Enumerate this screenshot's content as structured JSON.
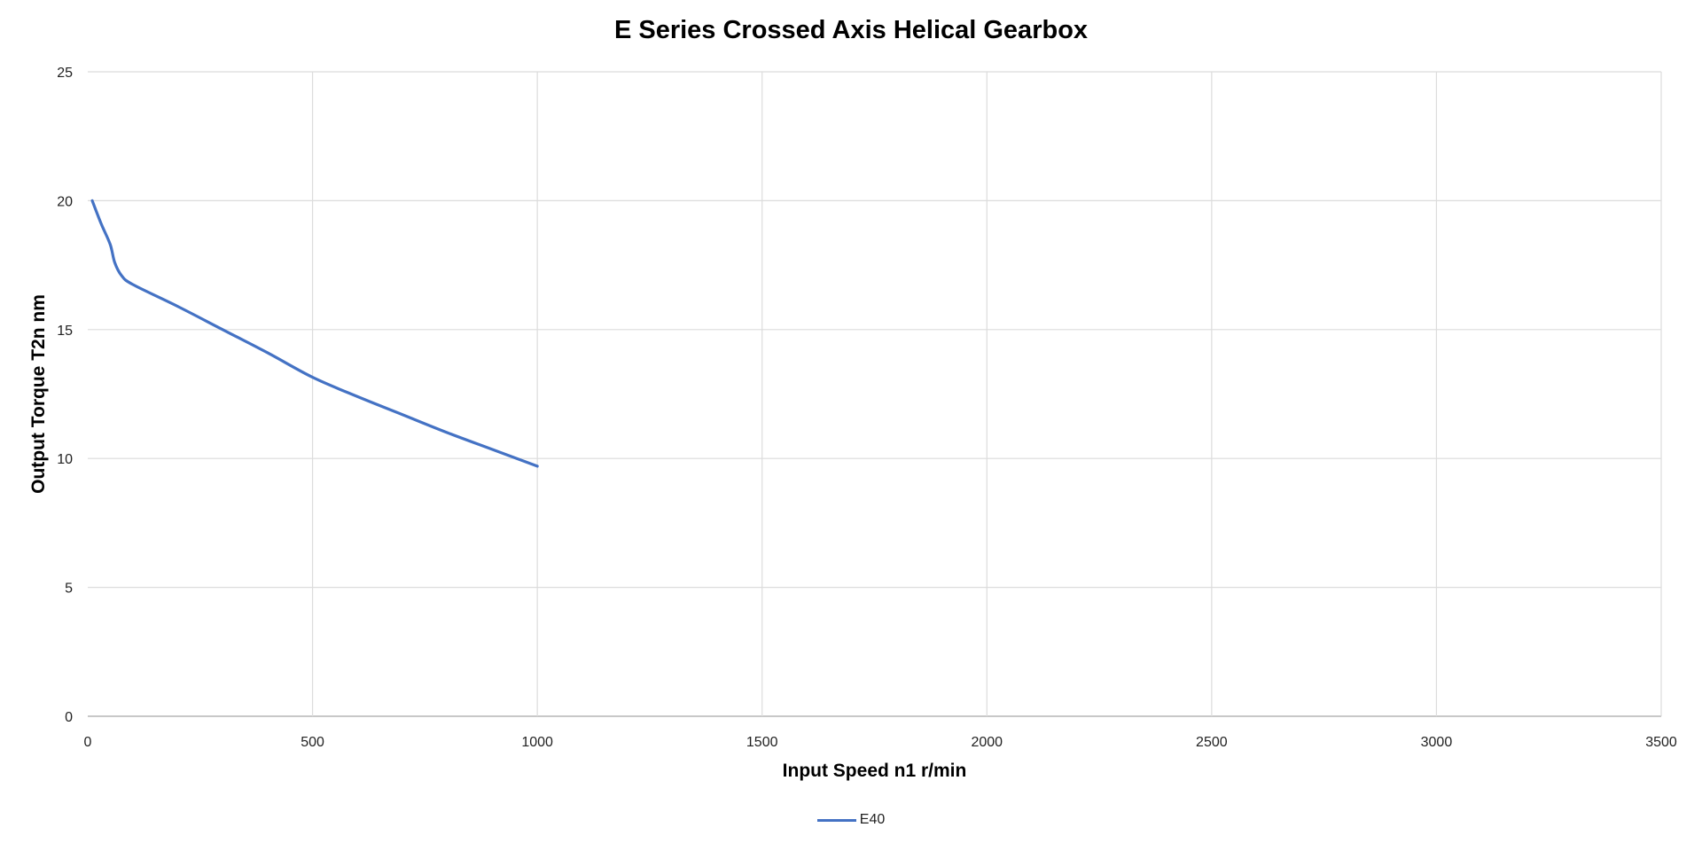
{
  "chart_data": {
    "type": "line",
    "title": "E Series Crossed Axis Helical Gearbox",
    "xlabel": "Input Speed n1 r/min",
    "ylabel": "Output Torque T2n nm",
    "xlim": [
      0,
      3500
    ],
    "ylim": [
      0,
      25
    ],
    "xticks": [
      0,
      500,
      1000,
      1500,
      2000,
      2500,
      3000,
      3500
    ],
    "yticks": [
      0,
      5,
      10,
      15,
      20,
      25
    ],
    "grid": true,
    "legend_position": "bottom",
    "series": [
      {
        "name": "E40",
        "color": "#4472C4",
        "x": [
          10,
          30,
          50,
          60,
          75,
          100,
          200,
          300,
          400,
          500,
          600,
          700,
          800,
          900,
          1000
        ],
        "y": [
          20,
          19.1,
          18.3,
          17.6,
          17.1,
          16.75,
          15.9,
          15.0,
          14.1,
          13.15,
          12.4,
          11.7,
          11.0,
          10.35,
          9.7
        ]
      }
    ]
  }
}
